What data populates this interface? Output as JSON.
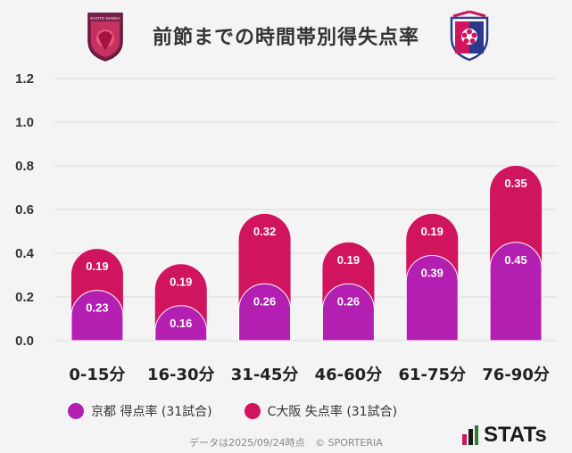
{
  "title": "前節までの時間帯別得失点率",
  "crests": {
    "left": "kyoto-sanga-crest",
    "right": "cerezo-osaka-crest",
    "left_text": "KYOTO SANGA"
  },
  "legend": [
    {
      "label": "京都 得点率 (31試合)",
      "color": "#b31fb0"
    },
    {
      "label": "C大阪 失点率 (31試合)",
      "color": "#d0145e"
    }
  ],
  "footer": {
    "date_text": "データは2025/09/24時点",
    "copyright": "© SPORTERIA"
  },
  "brand": {
    "name": "STATs"
  },
  "chart_data": {
    "type": "bar",
    "stacked": true,
    "categories": [
      "0-15分",
      "16-30分",
      "31-45分",
      "46-60分",
      "61-75分",
      "76-90分"
    ],
    "series": [
      {
        "name": "京都 得点率 (31試合)",
        "values": [
          0.23,
          0.16,
          0.26,
          0.26,
          0.39,
          0.45
        ],
        "labels": [
          "0.23",
          "0.16",
          "0.26",
          "0.26",
          "0.39",
          "0.45"
        ],
        "color": "#b31fb0"
      },
      {
        "name": "C大阪 失点率 (31試合)",
        "values": [
          0.19,
          0.19,
          0.32,
          0.19,
          0.19,
          0.35
        ],
        "labels": [
          "0.19",
          "0.19",
          "0.32",
          "0.19",
          "0.19",
          "0.35"
        ],
        "color": "#d0145e"
      }
    ],
    "ylim": [
      0,
      1.2
    ],
    "yticks": [
      "0.0",
      "0.2",
      "0.4",
      "0.6",
      "0.8",
      "1.0",
      "1.2"
    ],
    "grid": true
  }
}
